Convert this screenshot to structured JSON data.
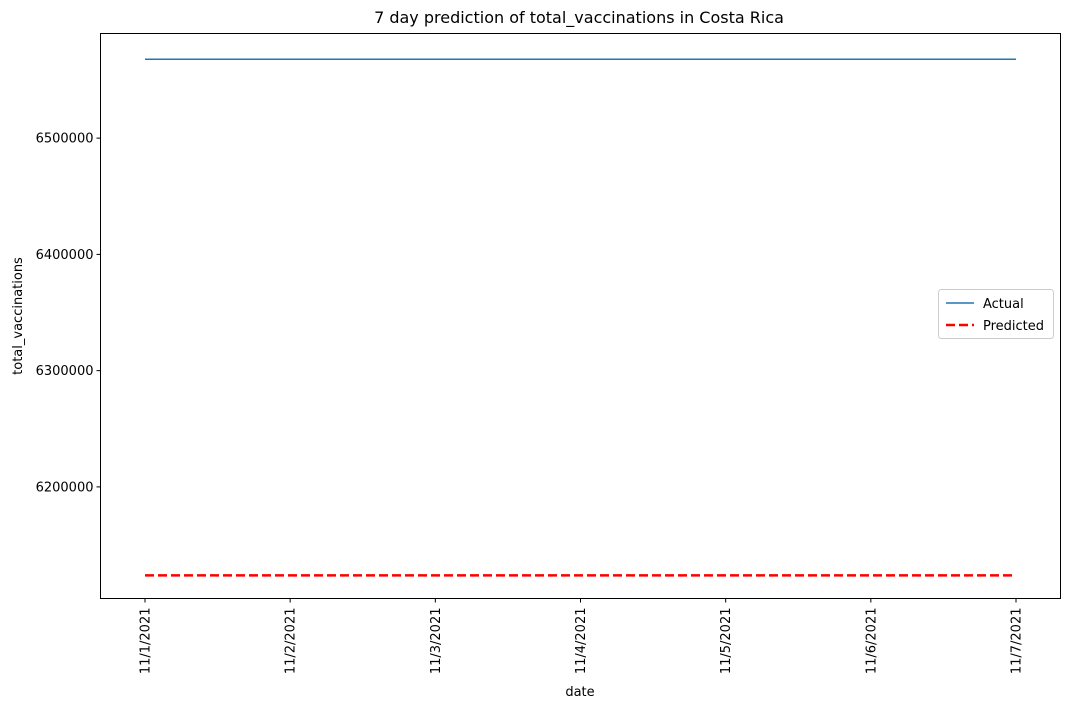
{
  "chart_data": {
    "type": "line",
    "title": "7 day prediction of total_vaccinations in Costa Rica",
    "xlabel": "date",
    "ylabel": "total_vaccinations",
    "x": [
      "11/1/2021",
      "11/2/2021",
      "11/3/2021",
      "11/4/2021",
      "11/5/2021",
      "11/6/2021",
      "11/7/2021"
    ],
    "yticks": [
      6200000,
      6300000,
      6400000,
      6500000
    ],
    "ylim": [
      6104000,
      6590000
    ],
    "grid": false,
    "legend_position": "center-right",
    "series": [
      {
        "name": "Actual",
        "color": "#1f77b4",
        "style": "solid",
        "values": [
          6567800,
          6567800,
          6567800,
          6567800,
          6567800,
          6567800,
          6567800
        ]
      },
      {
        "name": "Predicted",
        "color": "#ff0000",
        "style": "dashed",
        "values": [
          6123900,
          6123900,
          6123900,
          6123900,
          6123900,
          6123900,
          6123900
        ]
      }
    ]
  }
}
